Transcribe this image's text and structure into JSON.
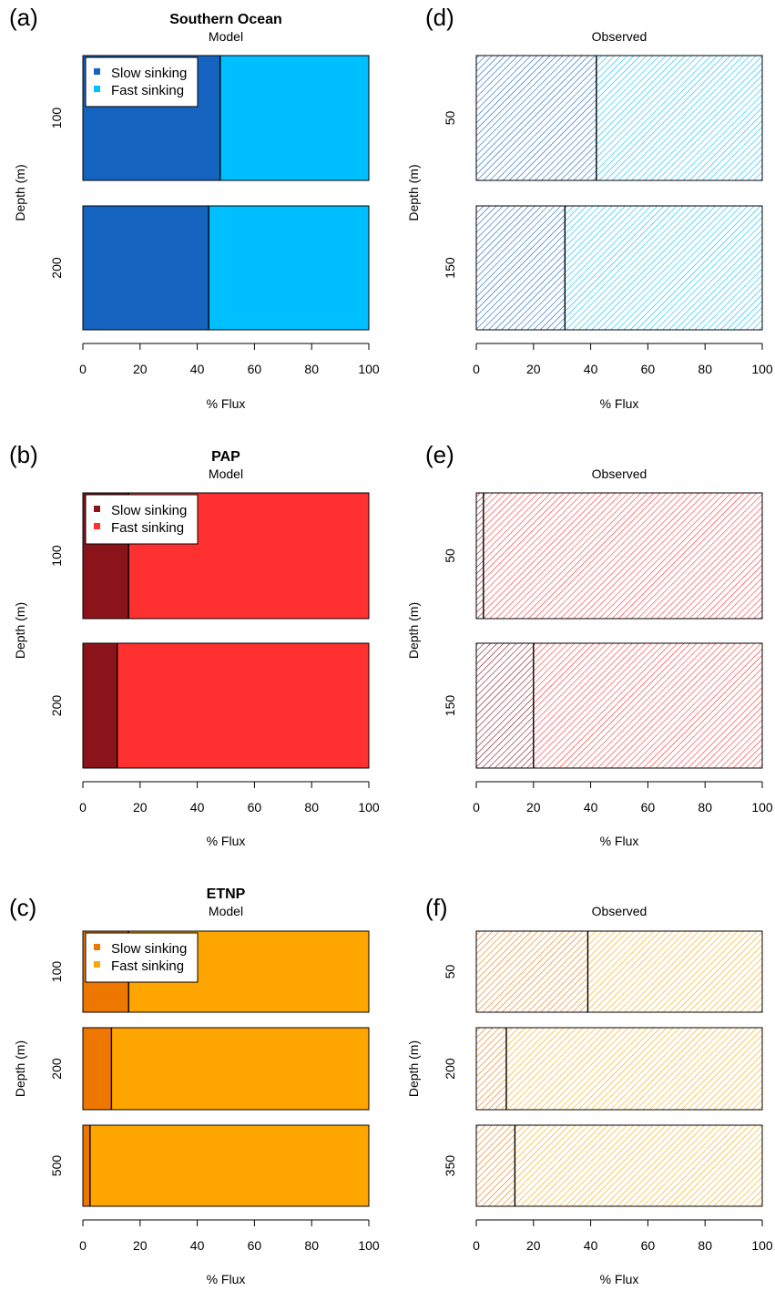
{
  "chart_data": [
    {
      "id": "a",
      "panel_label": "(a)",
      "title": "Southern Ocean",
      "subtitle": "Model",
      "type": "bar",
      "orientation": "horizontal",
      "stacked": true,
      "hatched": false,
      "xlabel": "% Flux",
      "ylabel": "Depth (m)",
      "xlim": [
        0,
        100
      ],
      "xticks": [
        0,
        20,
        40,
        60,
        80,
        100
      ],
      "categories": [
        "100",
        "200"
      ],
      "series": [
        {
          "name": "Slow sinking",
          "color": "#1565c0",
          "values": [
            48,
            44
          ]
        },
        {
          "name": "Fast sinking",
          "color": "#00bfff",
          "values": [
            52,
            56
          ]
        }
      ],
      "legend": {
        "position": "top-left",
        "entries": [
          "Slow sinking",
          "Fast sinking"
        ]
      }
    },
    {
      "id": "d",
      "panel_label": "(d)",
      "title": "",
      "subtitle": "Observed",
      "type": "bar",
      "orientation": "horizontal",
      "stacked": true,
      "hatched": true,
      "xlabel": "% Flux",
      "ylabel": "Depth (m)",
      "xlim": [
        0,
        100
      ],
      "xticks": [
        0,
        20,
        40,
        60,
        80,
        100
      ],
      "categories": [
        "50",
        "150"
      ],
      "series": [
        {
          "name": "Slow sinking",
          "color": "#1565c0",
          "values": [
            42,
            31
          ]
        },
        {
          "name": "Fast sinking",
          "color": "#00bfff",
          "values": [
            58,
            69
          ]
        }
      ]
    },
    {
      "id": "b",
      "panel_label": "(b)",
      "title": "PAP",
      "subtitle": "Model",
      "type": "bar",
      "orientation": "horizontal",
      "stacked": true,
      "hatched": false,
      "xlabel": "% Flux",
      "ylabel": "Depth (m)",
      "xlim": [
        0,
        100
      ],
      "xticks": [
        0,
        20,
        40,
        60,
        80,
        100
      ],
      "categories": [
        "100",
        "200"
      ],
      "series": [
        {
          "name": "Slow sinking",
          "color": "#8b141b",
          "values": [
            16,
            12
          ]
        },
        {
          "name": "Fast sinking",
          "color": "#ff3030",
          "values": [
            84,
            88
          ]
        }
      ],
      "legend": {
        "position": "top-left",
        "entries": [
          "Slow sinking",
          "Fast sinking"
        ]
      }
    },
    {
      "id": "e",
      "panel_label": "(e)",
      "title": "",
      "subtitle": "Observed",
      "type": "bar",
      "orientation": "horizontal",
      "stacked": true,
      "hatched": true,
      "xlabel": "% Flux",
      "ylabel": "Depth (m)",
      "xlim": [
        0,
        100
      ],
      "xticks": [
        0,
        20,
        40,
        60,
        80,
        100
      ],
      "categories": [
        "50",
        "150"
      ],
      "series": [
        {
          "name": "Slow sinking",
          "color": "#8b141b",
          "values": [
            2.5,
            20
          ]
        },
        {
          "name": "Fast sinking",
          "color": "#ff3030",
          "values": [
            97.5,
            80
          ]
        }
      ]
    },
    {
      "id": "c",
      "panel_label": "(c)",
      "title": "ETNP",
      "subtitle": "Model",
      "type": "bar",
      "orientation": "horizontal",
      "stacked": true,
      "hatched": false,
      "xlabel": "% Flux",
      "ylabel": "Depth (m)",
      "xlim": [
        0,
        100
      ],
      "xticks": [
        0,
        20,
        40,
        60,
        80,
        100
      ],
      "categories": [
        "100",
        "200",
        "500"
      ],
      "series": [
        {
          "name": "Slow sinking",
          "color": "#ee7700",
          "values": [
            16,
            10,
            2.5
          ]
        },
        {
          "name": "Fast sinking",
          "color": "#ffa500",
          "values": [
            84,
            90,
            97.5
          ]
        }
      ],
      "legend": {
        "position": "top-left",
        "entries": [
          "Slow sinking",
          "Fast sinking"
        ]
      }
    },
    {
      "id": "f",
      "panel_label": "(f)",
      "title": "",
      "subtitle": "Observed",
      "type": "bar",
      "orientation": "horizontal",
      "stacked": true,
      "hatched": true,
      "xlabel": "% Flux",
      "ylabel": "Depth (m)",
      "xlim": [
        0,
        100
      ],
      "xticks": [
        0,
        20,
        40,
        60,
        80,
        100
      ],
      "categories": [
        "50",
        "200",
        "350"
      ],
      "series": [
        {
          "name": "Slow sinking",
          "color": "#ee7700",
          "values": [
            39,
            10.5,
            13.5
          ]
        },
        {
          "name": "Fast sinking",
          "color": "#ffa500",
          "values": [
            61,
            89.5,
            86.5
          ]
        }
      ]
    }
  ]
}
